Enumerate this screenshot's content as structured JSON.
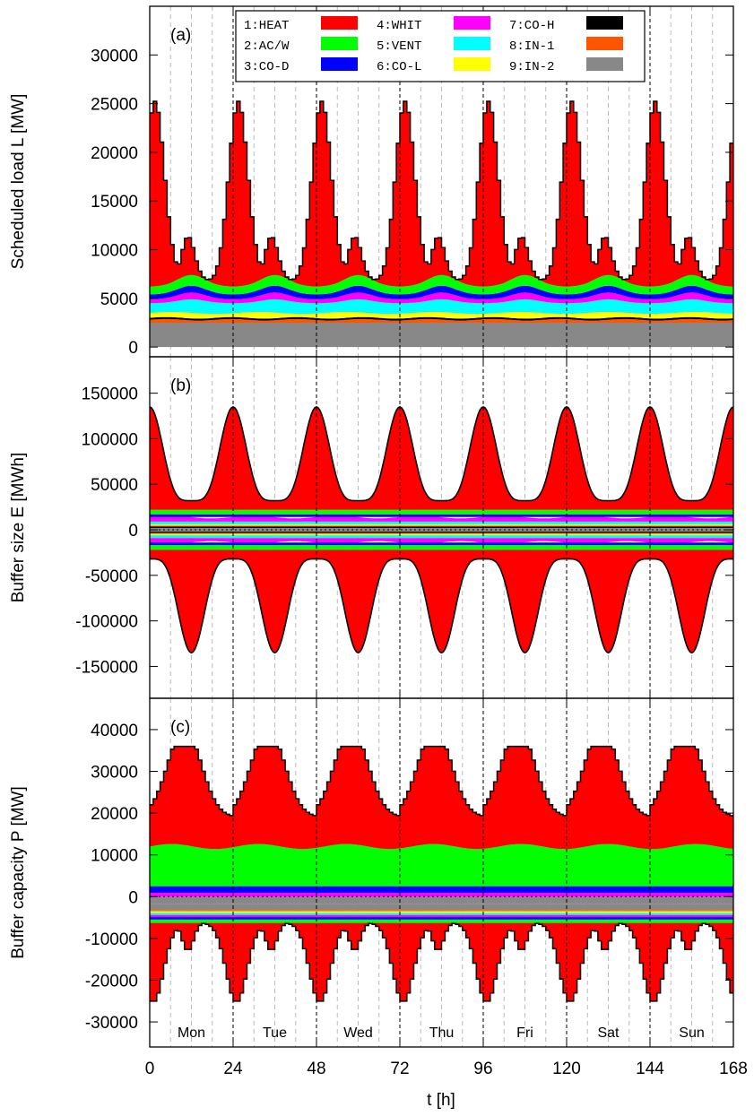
{
  "chart_data": {
    "type": "area",
    "x_axis": {
      "label": "t [h]",
      "range": [
        0,
        168
      ],
      "ticks": [
        0,
        24,
        48,
        72,
        96,
        120,
        144,
        168
      ]
    },
    "days": [
      "Mon",
      "Tue",
      "Wed",
      "Thu",
      "Fri",
      "Sat",
      "Sun"
    ],
    "legend": [
      {
        "label": "1:HEAT",
        "color": "#ff0000"
      },
      {
        "label": "2:AC/W",
        "color": "#00ff00"
      },
      {
        "label": "3:CO-D",
        "color": "#0000ff"
      },
      {
        "label": "4:WHIT",
        "color": "#ff00ff"
      },
      {
        "label": "5:VENT",
        "color": "#00ffff"
      },
      {
        "label": "6:CO-L",
        "color": "#ffff00"
      },
      {
        "label": "7:CO-H",
        "color": "#000000"
      },
      {
        "label": "8:IN-1",
        "color": "#ff5500"
      },
      {
        "label": "9:IN-2",
        "color": "#888888"
      }
    ],
    "panels": [
      {
        "tag": "(a)",
        "ylabel": "Scheduled load L [MW]",
        "ylim": [
          -1000,
          35000
        ],
        "yticks": [
          0,
          5000,
          10000,
          15000,
          20000,
          25000,
          30000
        ],
        "layers": {
          "IN-2": 2500,
          "IN-1": 300,
          "CO-H": 200,
          "CO-L": 500,
          "VENT": [
            800,
            1200
          ],
          "CO-D": [
            400,
            800
          ],
          "AC/W": [
            700,
            1000
          ],
          "HEAT_peak": 25000,
          "HEAT_secondary_peak": 10000
        }
      },
      {
        "tag": "(b)",
        "ylabel": "Buffer size E [MWh]",
        "ylim": [
          -185000,
          190000
        ],
        "yticks": [
          -150000,
          -100000,
          -50000,
          0,
          50000,
          100000,
          150000
        ],
        "envelope": {
          "max": 135000,
          "min_upper": 32000
        }
      },
      {
        "tag": "(c)",
        "ylabel": "Buffer capacity P [MW]",
        "ylim": [
          -36000,
          47500
        ],
        "yticks": [
          -30000,
          -20000,
          -10000,
          0,
          10000,
          20000,
          30000,
          40000
        ],
        "envelope": {
          "max": 36000,
          "min_upper": 19000,
          "lower_peak": -25000,
          "lower_min": -7000
        }
      }
    ]
  }
}
